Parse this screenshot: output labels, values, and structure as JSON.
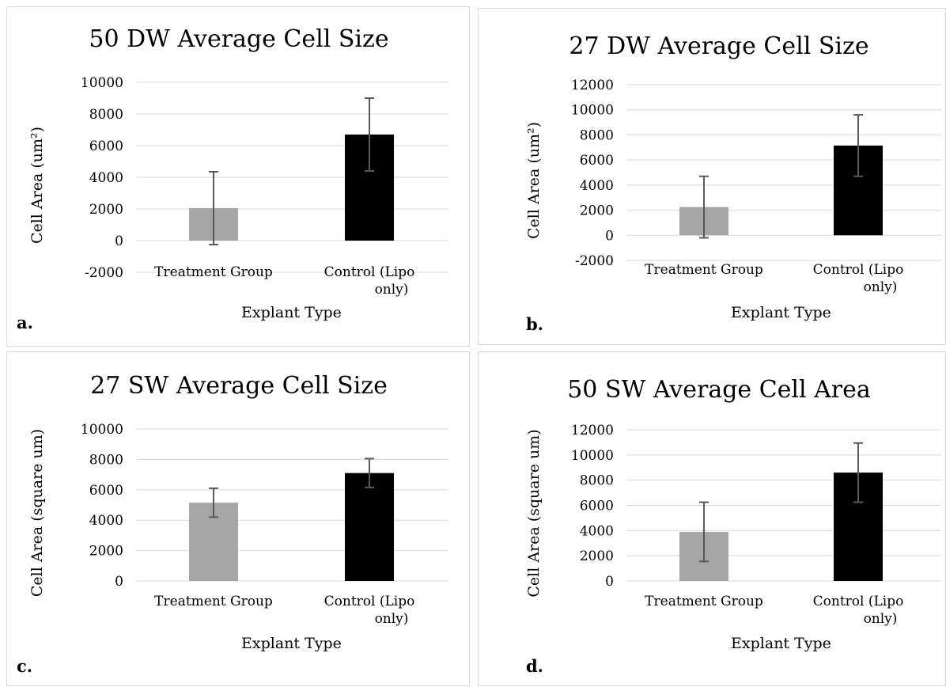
{
  "chart_data": [
    {
      "type": "bar",
      "title": "50 DW Average Cell Size",
      "panel_label": "a.",
      "categories": [
        "Treatment Group",
        "Control (Lipo only)"
      ],
      "category_lines": [
        [
          "Treatment Group"
        ],
        [
          "Control (Lipo",
          "only)"
        ]
      ],
      "values": [
        2050,
        6700
      ],
      "error": [
        2300,
        2300
      ],
      "bar_colors": [
        "#a6a6a6",
        "#000000"
      ],
      "xlabel": "Explant Type",
      "ylabel": "Cell Area (um²)",
      "ylim": [
        -2000,
        10000
      ],
      "yticks": [
        -2000,
        0,
        2000,
        4000,
        6000,
        8000,
        10000
      ],
      "grid": true
    },
    {
      "type": "bar",
      "title": "27 DW Average Cell Size",
      "panel_label": "b.",
      "categories": [
        "Treatment Group",
        "Control (Lipo only)"
      ],
      "category_lines": [
        [
          "Treatment Group"
        ],
        [
          "Control (Lipo",
          "only)"
        ]
      ],
      "values": [
        2250,
        7150
      ],
      "error": [
        2450,
        2450
      ],
      "bar_colors": [
        "#a6a6a6",
        "#000000"
      ],
      "xlabel": "Explant Type",
      "ylabel": "Cell Area (um²)",
      "ylim": [
        -2000,
        12000
      ],
      "yticks": [
        -2000,
        0,
        2000,
        4000,
        6000,
        8000,
        10000,
        12000
      ],
      "grid": true
    },
    {
      "type": "bar",
      "title": "27 SW Average Cell Size",
      "panel_label": "c.",
      "categories": [
        "Treatment Group",
        "Control (Lipo only)"
      ],
      "category_lines": [
        [
          "Treatment Group"
        ],
        [
          "Control (Lipo",
          "only)"
        ]
      ],
      "values": [
        5150,
        7100
      ],
      "error": [
        950,
        950
      ],
      "bar_colors": [
        "#a6a6a6",
        "#000000"
      ],
      "xlabel": "Explant Type",
      "ylabel": "Cell Area (square um)",
      "ylim": [
        0,
        10000
      ],
      "yticks": [
        0,
        2000,
        4000,
        6000,
        8000,
        10000
      ],
      "grid": true
    },
    {
      "type": "bar",
      "title": "50 SW Average Cell Area",
      "panel_label": "d.",
      "categories": [
        "Treatment Group",
        "Control (Lipo only)"
      ],
      "category_lines": [
        [
          "Treatment Group"
        ],
        [
          "Control (Lipo",
          "only)"
        ]
      ],
      "values": [
        3900,
        8600
      ],
      "error": [
        2350,
        2350
      ],
      "bar_colors": [
        "#a6a6a6",
        "#000000"
      ],
      "xlabel": "Explant Type",
      "ylabel": "Cell Area (square um)",
      "ylim": [
        0,
        12000
      ],
      "yticks": [
        0,
        2000,
        4000,
        6000,
        8000,
        10000,
        12000
      ],
      "grid": true
    }
  ]
}
